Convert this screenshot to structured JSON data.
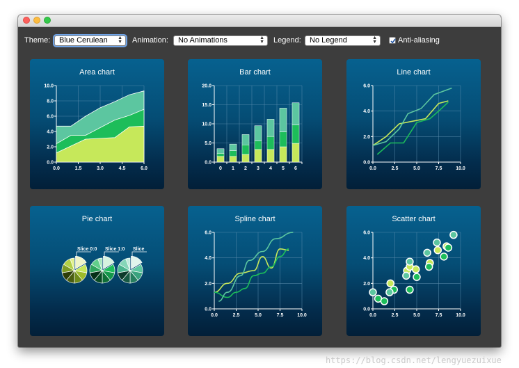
{
  "window": {
    "title": ""
  },
  "toolbar": {
    "theme_label": "Theme:",
    "theme_value": "Blue Cerulean",
    "animation_label": "Animation:",
    "animation_value": "No Animations",
    "legend_label": "Legend:",
    "legend_value": "No Legend",
    "antialiasing_label": "Anti-aliasing",
    "antialiasing_checked": true
  },
  "colors": {
    "panel_top": "#06618f",
    "panel_bottom": "#021f38",
    "series_light": "#c6e85a",
    "series_mid": "#1dbd5a",
    "series_pale": "#5cc6a0",
    "grid": "#5f8fb0",
    "text": "#ffffff"
  },
  "watermark": "https://blog.csdn.net/lengyuezuixue",
  "chart_data": [
    {
      "type": "area",
      "title": "Area chart",
      "xlim": [
        0,
        6
      ],
      "ylim": [
        0,
        10
      ],
      "x_ticks": [
        "0.0",
        "1.5",
        "3.0",
        "4.5",
        "6.0"
      ],
      "y_ticks": [
        "0.0",
        "2.0",
        "4.0",
        "6.0",
        "8.0",
        "10.0"
      ],
      "x": [
        0,
        1,
        2,
        3,
        4,
        5,
        6
      ],
      "series": [
        {
          "values": [
            1.2,
            2.1,
            3.0,
            3.1,
            3.2,
            4.6,
            4.7
          ]
        },
        {
          "values": [
            2.4,
            3.5,
            3.5,
            4.5,
            5.5,
            6.1,
            6.9
          ]
        },
        {
          "values": [
            4.7,
            4.7,
            6.0,
            7.1,
            7.9,
            8.8,
            9.3
          ]
        }
      ]
    },
    {
      "type": "bar",
      "title": "Bar chart",
      "stacked": true,
      "ylim": [
        0,
        20
      ],
      "categories": [
        "0",
        "1",
        "2",
        "3",
        "4",
        "5",
        "6"
      ],
      "y_ticks": [
        "0.0",
        "5.0",
        "10.0",
        "15.0",
        "20.0"
      ],
      "series": [
        {
          "values": [
            1.5,
            1.5,
            2.0,
            3.3,
            3.3,
            4.0,
            4.9
          ]
        },
        {
          "values": [
            0.8,
            1.5,
            2.5,
            2.2,
            3.4,
            3.9,
            4.8
          ]
        },
        {
          "values": [
            1.2,
            1.7,
            2.7,
            4.0,
            4.5,
            6.2,
            5.8
          ]
        }
      ]
    },
    {
      "type": "line",
      "title": "Line chart",
      "xlim": [
        0,
        10
      ],
      "ylim": [
        0,
        6
      ],
      "x_ticks": [
        "0.0",
        "2.5",
        "5.0",
        "7.5",
        "10.0"
      ],
      "y_ticks": [
        "0.0",
        "2.0",
        "4.0",
        "6.0"
      ],
      "series": [
        {
          "points": [
            [
              0,
              1.3
            ],
            [
              1.5,
              2.0
            ],
            [
              3,
              3.0
            ],
            [
              4.5,
              3.2
            ],
            [
              6,
              3.4
            ],
            [
              7.5,
              4.6
            ],
            [
              8.6,
              4.8
            ]
          ]
        },
        {
          "points": [
            [
              0.5,
              0.6
            ],
            [
              2,
              1.5
            ],
            [
              3.5,
              1.5
            ],
            [
              5,
              3.1
            ],
            [
              6.5,
              3.4
            ],
            [
              7.5,
              4.0
            ],
            [
              8.6,
              4.7
            ]
          ]
        },
        {
          "points": [
            [
              0,
              1.3
            ],
            [
              1.5,
              1.6
            ],
            [
              3,
              2.6
            ],
            [
              4,
              3.8
            ],
            [
              5.5,
              4.2
            ],
            [
              7,
              5.3
            ],
            [
              9,
              5.8
            ]
          ]
        }
      ]
    },
    {
      "type": "pie",
      "title": "Pie chart",
      "pies": [
        {
          "label": "Slice 0:0",
          "values": [
            3,
            2,
            2,
            2,
            2,
            2,
            2,
            2,
            1
          ]
        },
        {
          "label": "Slice 1:0",
          "values": [
            3,
            2,
            2,
            2,
            2,
            2,
            2,
            2,
            1
          ]
        },
        {
          "label": "Slice",
          "values": [
            3,
            2,
            2,
            2,
            2,
            2,
            2,
            2,
            1
          ]
        }
      ]
    },
    {
      "type": "line",
      "title": "Spline chart",
      "xlim": [
        0,
        10
      ],
      "ylim": [
        0,
        6
      ],
      "x_ticks": [
        "0.0",
        "2.5",
        "5.0",
        "7.5",
        "10.0"
      ],
      "y_ticks": [
        "0.0",
        "2.0",
        "4.0",
        "6.0"
      ],
      "series": [
        {
          "points": [
            [
              0,
              1.3
            ],
            [
              1.5,
              2.0
            ],
            [
              3,
              2.8
            ],
            [
              4.5,
              3.0
            ],
            [
              5.5,
              4.1
            ],
            [
              6.5,
              3.2
            ],
            [
              7.5,
              4.7
            ],
            [
              8.5,
              4.6
            ]
          ]
        },
        {
          "points": [
            [
              0,
              1.3
            ],
            [
              1.5,
              0.9
            ],
            [
              2.5,
              1.3
            ],
            [
              3.5,
              1.6
            ],
            [
              4.5,
              2.6
            ],
            [
              5.5,
              2.8
            ],
            [
              6.5,
              3.3
            ],
            [
              7.5,
              4.1
            ],
            [
              8.5,
              4.7
            ]
          ]
        },
        {
          "points": [
            [
              0.5,
              0.6
            ],
            [
              1.5,
              1.3
            ],
            [
              3,
              2.6
            ],
            [
              4,
              3.8
            ],
            [
              5.5,
              4.5
            ],
            [
              7,
              5.5
            ],
            [
              9,
              6.0
            ]
          ]
        }
      ]
    },
    {
      "type": "scatter",
      "title": "Scatter chart",
      "xlim": [
        0,
        10
      ],
      "ylim": [
        0,
        6
      ],
      "x_ticks": [
        "0.0",
        "2.5",
        "5.0",
        "7.5",
        "10.0"
      ],
      "y_ticks": [
        "0.0",
        "2.0",
        "4.0",
        "6.0"
      ],
      "series": [
        {
          "points": [
            [
              2,
              2.0
            ],
            [
              3.9,
              3.0
            ],
            [
              4.2,
              3.3
            ],
            [
              4.9,
              3.1
            ],
            [
              6.5,
              3.6
            ],
            [
              7.4,
              4.6
            ],
            [
              8.4,
              4.9
            ]
          ]
        },
        {
          "points": [
            [
              0.6,
              0.8
            ],
            [
              1.3,
              0.6
            ],
            [
              2.4,
              1.5
            ],
            [
              4.2,
              1.5
            ],
            [
              5,
              2.5
            ],
            [
              6.4,
              3.3
            ],
            [
              8.1,
              4.1
            ],
            [
              8.6,
              4.8
            ]
          ]
        },
        {
          "points": [
            [
              0,
              1.3
            ],
            [
              1.9,
              1.3
            ],
            [
              3.8,
              2.6
            ],
            [
              4.2,
              3.7
            ],
            [
              6.2,
              4.4
            ],
            [
              7.3,
              5.2
            ],
            [
              9.2,
              5.8
            ]
          ]
        }
      ]
    }
  ]
}
